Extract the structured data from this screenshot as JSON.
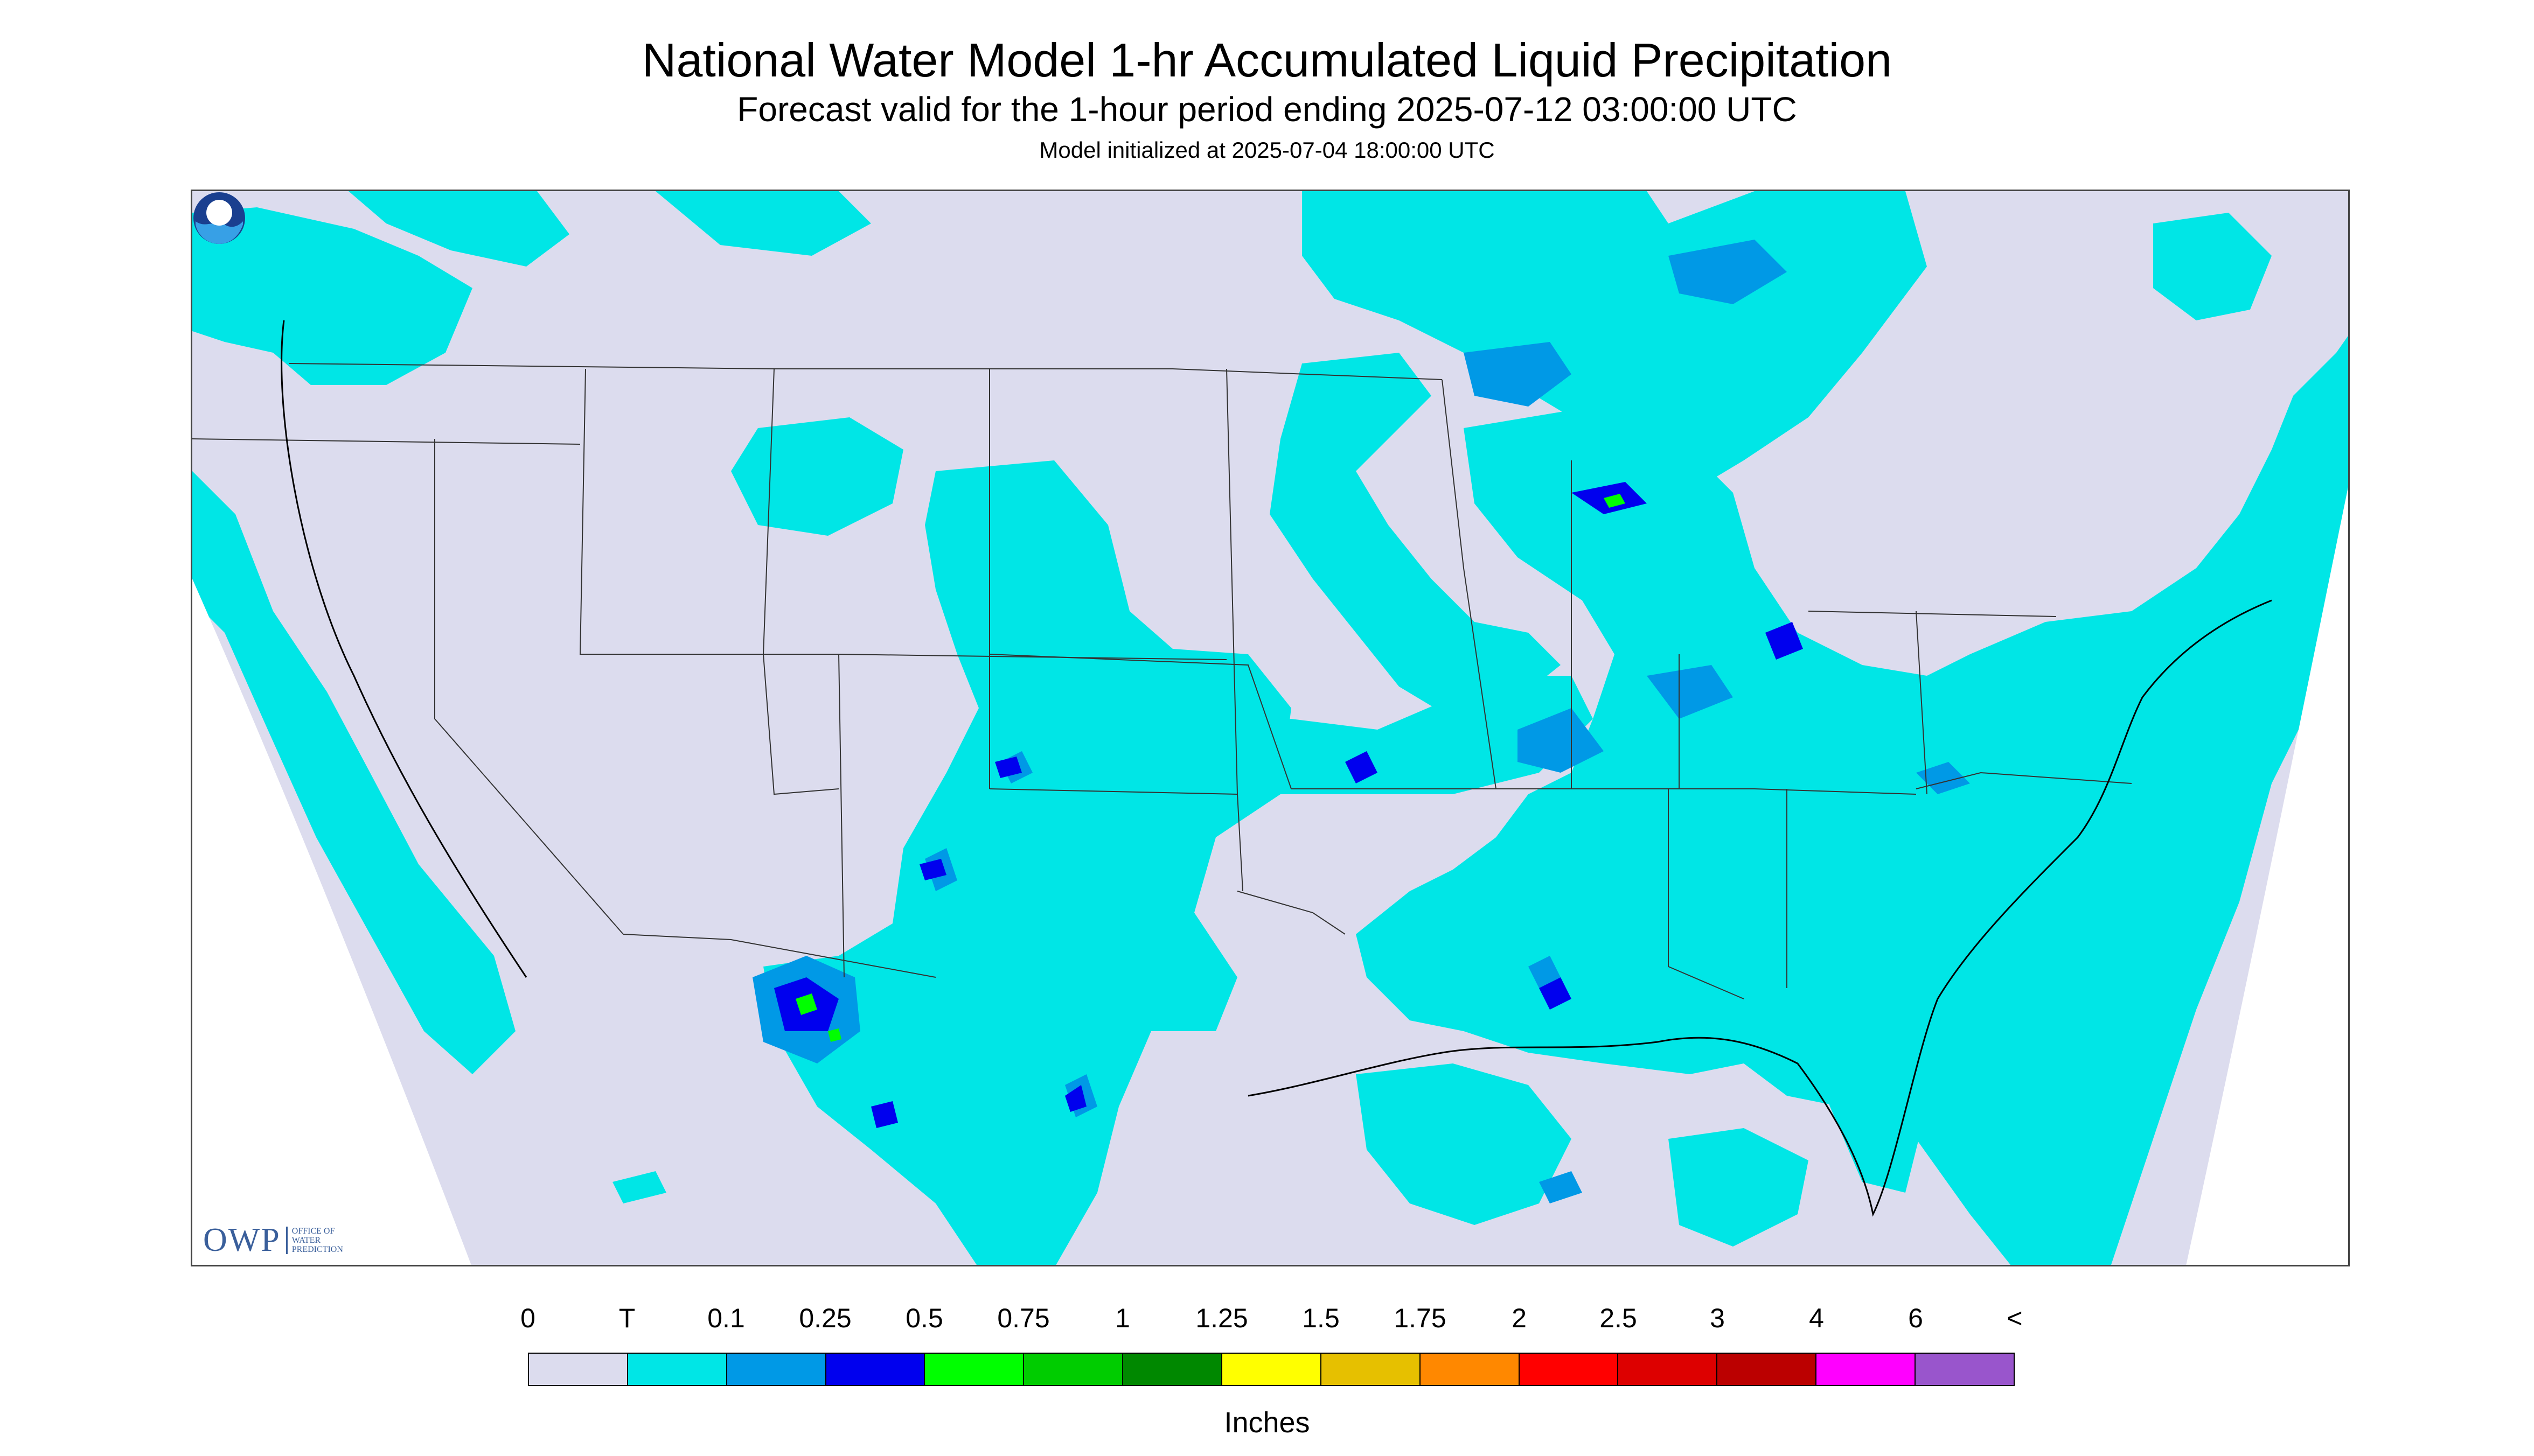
{
  "header": {
    "title": "National Water Model 1-hr Accumulated Liquid Precipitation",
    "subtitle": "Forecast valid for the 1-hour period ending 2025-07-12 03:00:00 UTC",
    "init": "Model initialized at 2025-07-04 18:00:00 UTC"
  },
  "map": {
    "region": "CONUS",
    "background_color": "#dcdcee",
    "logos": {
      "owp_main": "OWP",
      "owp_sub": [
        "OFFICE OF",
        "WATER",
        "PREDICTION"
      ],
      "noaa": "noaa-logo"
    }
  },
  "legend": {
    "labels": [
      "0",
      "T",
      "0.1",
      "0.25",
      "0.5",
      "0.75",
      "1",
      "1.25",
      "1.5",
      "1.75",
      "2",
      "2.5",
      "3",
      "4",
      "6",
      "<"
    ],
    "colors": [
      "#dcdcee",
      "#00e6e6",
      "#0099e6",
      "#0000ee",
      "#00ff00",
      "#00cc00",
      "#008800",
      "#ffff00",
      "#e6c000",
      "#ff8800",
      "#ff0000",
      "#dd0000",
      "#bb0000",
      "#ff00ff",
      "#9955cc"
    ],
    "units": "Inches"
  }
}
